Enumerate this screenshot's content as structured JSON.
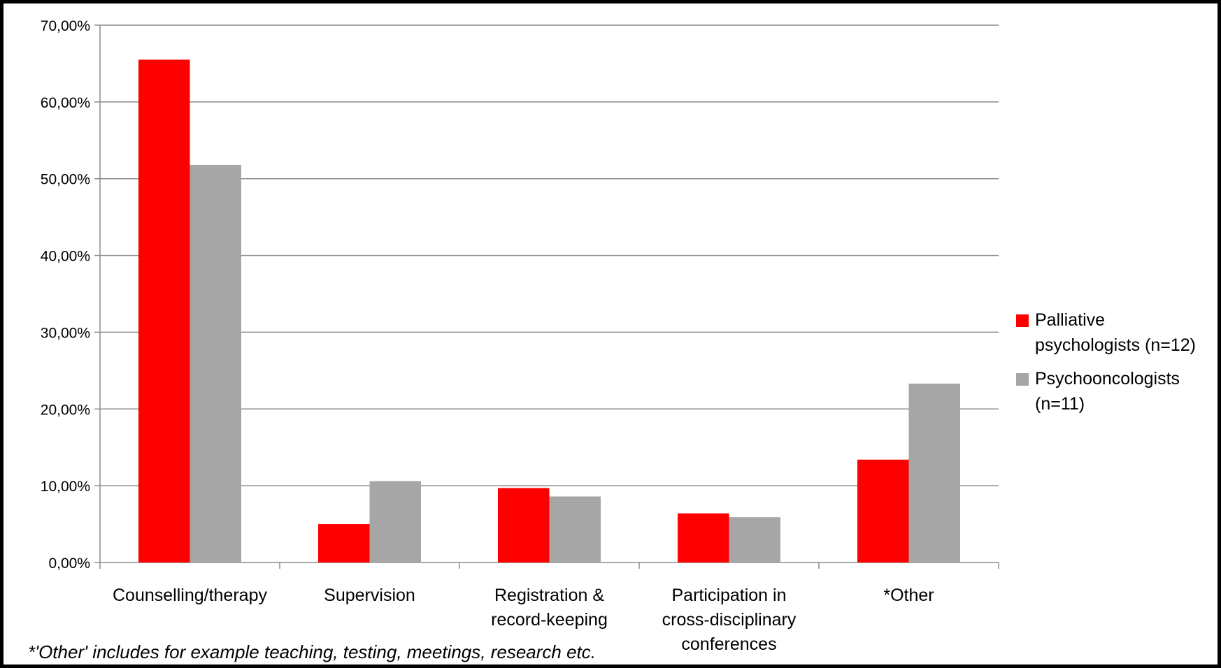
{
  "chart_data": {
    "type": "bar",
    "title": "",
    "xlabel": "",
    "ylabel": "",
    "ylim": [
      0,
      0.7
    ],
    "yticks": [
      "0,00%",
      "10,00%",
      "20,00%",
      "30,00%",
      "40,00%",
      "50,00%",
      "60,00%",
      "70,00%"
    ],
    "categories": [
      [
        "Counselling/therapy"
      ],
      [
        "Supervision"
      ],
      [
        "Registration &",
        "record-keeping"
      ],
      [
        "Participation in",
        "cross-disciplinary",
        "conferences"
      ],
      [
        "*Other"
      ]
    ],
    "series": [
      {
        "name": "Palliative psychologists (n=12)",
        "legend_lines": [
          "Palliative",
          "psychologists (n=12)"
        ],
        "color": "#ff0000",
        "values": [
          0.655,
          0.05,
          0.097,
          0.064,
          0.134
        ]
      },
      {
        "name": "Psychooncologists (n=11)",
        "legend_lines": [
          "Psychooncologists",
          "(n=11)"
        ],
        "color": "#a6a6a6",
        "values": [
          0.518,
          0.106,
          0.086,
          0.059,
          0.233
        ]
      }
    ],
    "grid": true,
    "legend_position": "right"
  },
  "footnote": "*'Other' includes for example teaching, testing, meetings, research etc."
}
